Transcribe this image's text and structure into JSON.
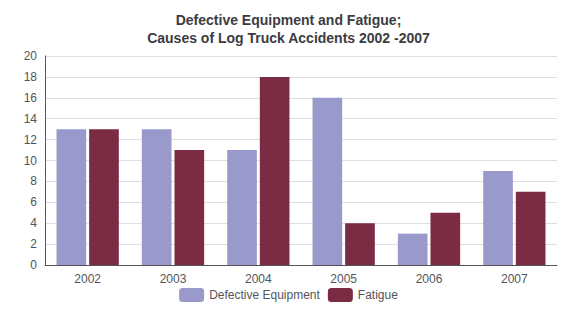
{
  "chart_data": {
    "type": "bar",
    "title": "Defective Equipment and Fatigue;\nCauses of Log Truck Accidents 2002 -2007",
    "categories": [
      "2002",
      "2003",
      "2004",
      "2005",
      "2006",
      "2007"
    ],
    "series": [
      {
        "name": "Defective Equipment",
        "color": "#9999CC",
        "values": [
          13,
          13,
          11,
          16,
          3,
          9
        ]
      },
      {
        "name": "Fatigue",
        "color": "#7B2B42",
        "values": [
          13,
          11,
          18,
          4,
          5,
          7
        ]
      }
    ],
    "ylim": [
      0,
      20
    ],
    "yticks": [
      0,
      2,
      4,
      6,
      8,
      10,
      12,
      14,
      16,
      18,
      20
    ],
    "grid": true,
    "legend": "bottom"
  }
}
